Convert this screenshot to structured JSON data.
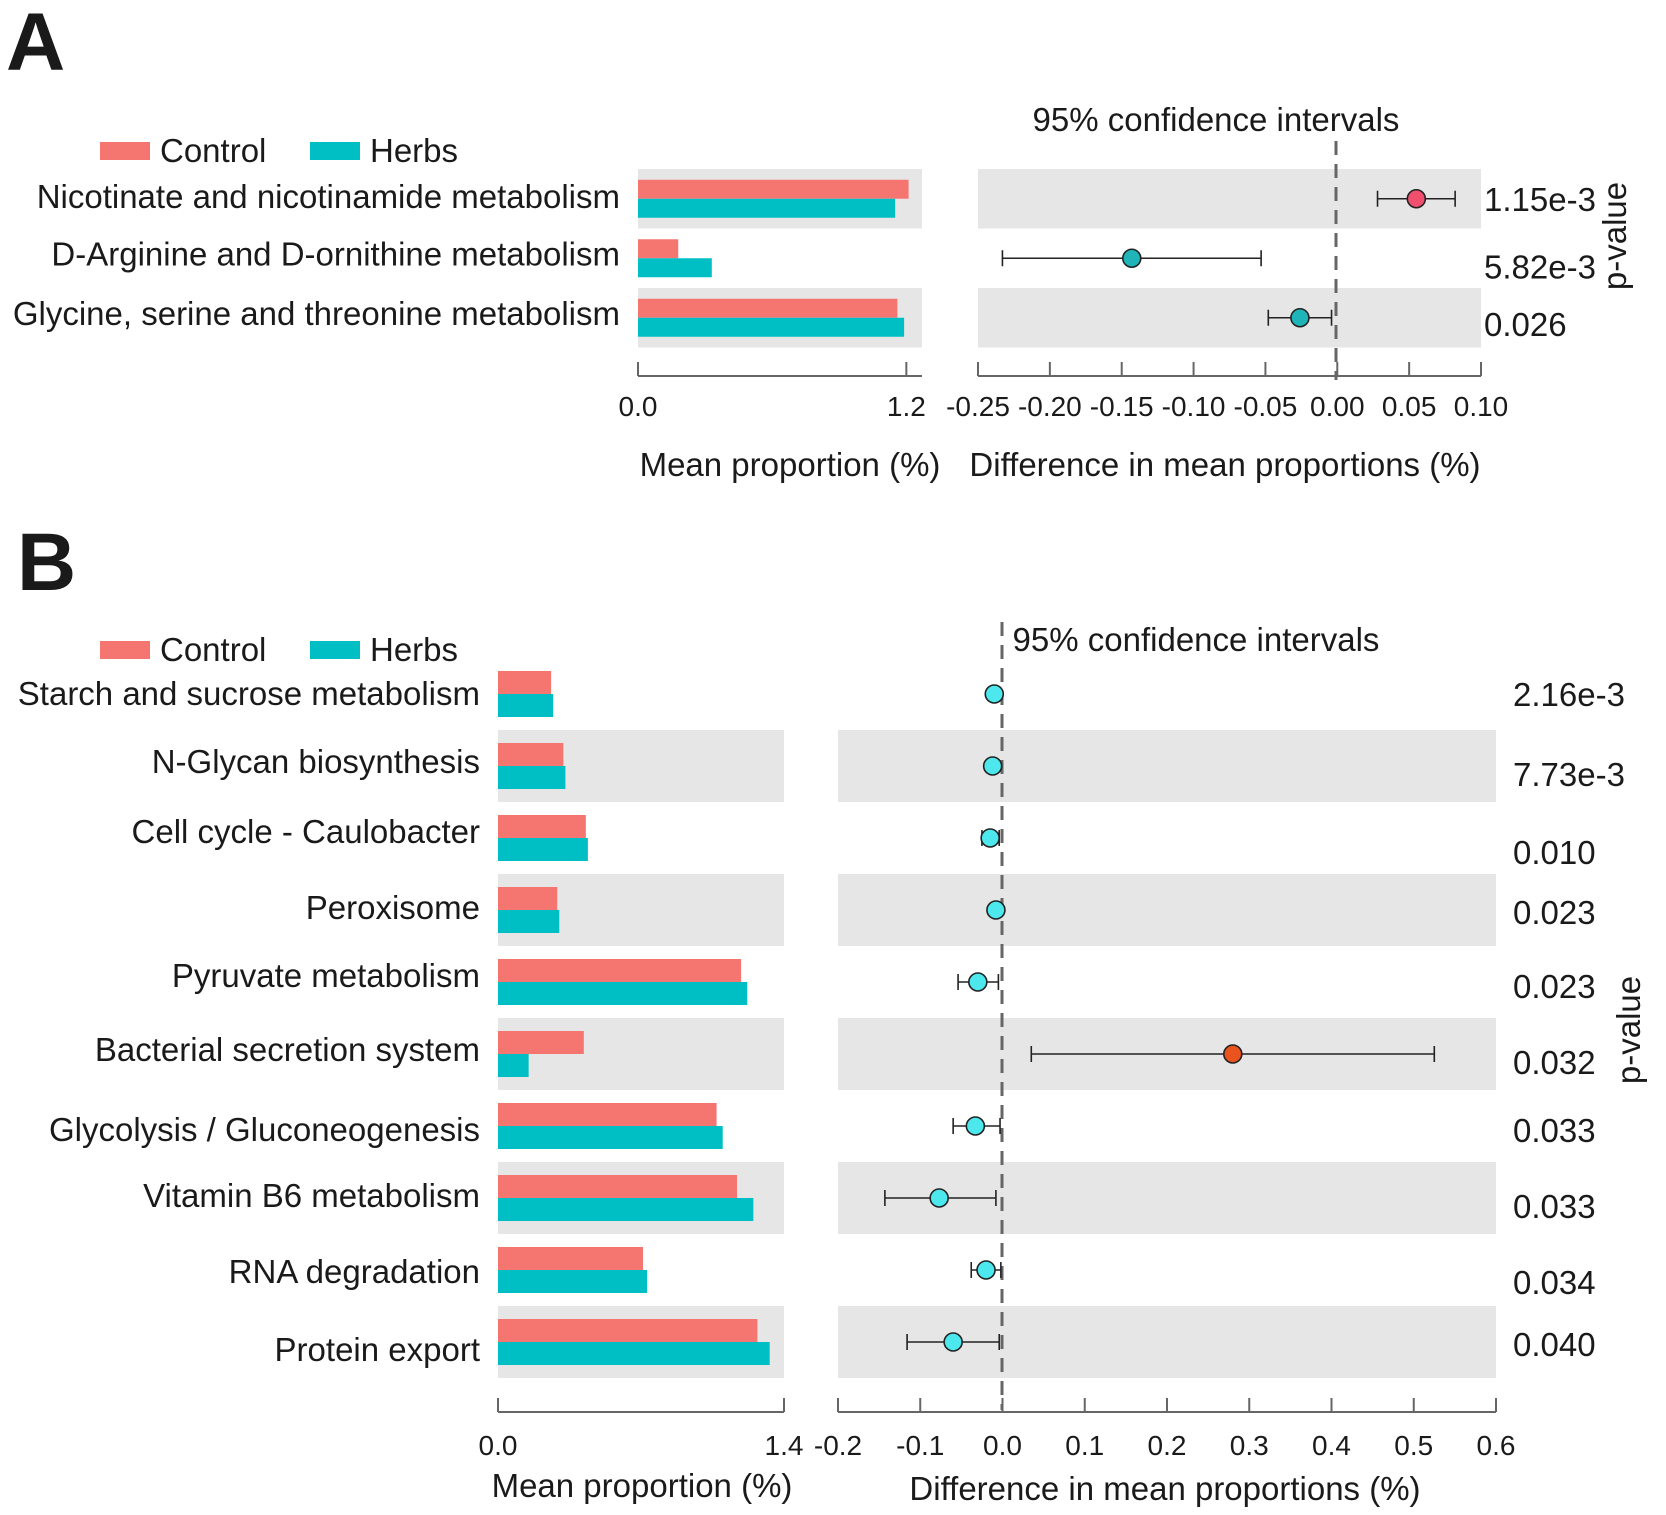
{
  "colors": {
    "control": "#F57570",
    "herbs": "#00BFC4",
    "band": "#E6E6E6"
  },
  "chart_data": [
    {
      "panel": "A",
      "type": "bar",
      "legend": [
        "Control",
        "Herbs"
      ],
      "categories": [
        "Nicotinate and nicotinamide metabolism",
        "D-Arginine and D-ornithine metabolism",
        "Glycine, serine and threonine metabolism"
      ],
      "series": [
        {
          "name": "Control",
          "values": [
            1.21,
            0.18,
            1.16
          ]
        },
        {
          "name": "Herbs",
          "values": [
            1.15,
            0.33,
            1.19
          ]
        }
      ],
      "xlabel": "Mean proportion (%)",
      "xlim": [
        0,
        1.27
      ],
      "xticks": [
        "0.0",
        "1.2"
      ],
      "xtick_values": [
        0,
        1.2
      ],
      "ci": {
        "title": "95% confidence intervals",
        "xlabel": "Difference in mean proportions (%)",
        "xlim": [
          -0.25,
          0.1
        ],
        "xticks": [
          "-0.25",
          "-0.20",
          "-0.15",
          "-0.10",
          "-0.05",
          "0.00",
          "0.05",
          "0.10"
        ],
        "xtick_values": [
          -0.25,
          -0.2,
          -0.15,
          -0.1,
          -0.05,
          0.0,
          0.05,
          0.1
        ],
        "points": [
          {
            "estimate": 0.055,
            "low": 0.028,
            "high": 0.082,
            "color": "#F0506E"
          },
          {
            "estimate": -0.143,
            "low": -0.233,
            "high": -0.053,
            "color": "#1FB5B8"
          },
          {
            "estimate": -0.026,
            "low": -0.048,
            "high": -0.004,
            "color": "#1FB5B8"
          }
        ]
      },
      "p_value_title": "p-value",
      "p_values": [
        "1.15e-3",
        "5.82e-3",
        "0.026"
      ]
    },
    {
      "panel": "B",
      "type": "bar",
      "legend": [
        "Control",
        "Herbs"
      ],
      "categories": [
        "Starch and sucrose metabolism",
        "N-Glycan biosynthesis",
        "Cell cycle - Caulobacter",
        "Peroxisome",
        "Pyruvate metabolism",
        "Bacterial secretion system",
        "Glycolysis / Gluconeogenesis",
        "Vitamin B6 metabolism",
        "RNA degradation",
        "Protein export"
      ],
      "series": [
        {
          "name": "Control",
          "values": [
            0.26,
            0.32,
            0.43,
            0.29,
            1.19,
            0.42,
            1.07,
            1.17,
            0.71,
            1.27
          ]
        },
        {
          "name": "Herbs",
          "values": [
            0.27,
            0.33,
            0.44,
            0.3,
            1.22,
            0.15,
            1.1,
            1.25,
            0.73,
            1.33
          ]
        }
      ],
      "xlabel": "Mean proportion (%)",
      "xlim": [
        0,
        1.4
      ],
      "xticks": [
        "0.0",
        "1.4"
      ],
      "xtick_values": [
        0,
        1.4
      ],
      "ci": {
        "title": "95% confidence intervals",
        "xlabel": "Difference in mean proportions (%)",
        "xlim": [
          -0.2,
          0.6
        ],
        "xticks": [
          "-0.2",
          "-0.1",
          "0.0",
          "0.1",
          "0.2",
          "0.3",
          "0.4",
          "0.5",
          "0.6"
        ],
        "xtick_values": [
          -0.2,
          -0.1,
          0.0,
          0.1,
          0.2,
          0.3,
          0.4,
          0.5,
          0.6
        ],
        "points": [
          {
            "estimate": -0.01,
            "low": -0.015,
            "high": -0.005,
            "color": "#4DE8EE"
          },
          {
            "estimate": -0.012,
            "low": -0.017,
            "high": -0.007,
            "color": "#4DE8EE"
          },
          {
            "estimate": -0.015,
            "low": -0.025,
            "high": -0.004,
            "color": "#4DE8EE"
          },
          {
            "estimate": -0.008,
            "low": -0.012,
            "high": -0.004,
            "color": "#4DE8EE"
          },
          {
            "estimate": -0.03,
            "low": -0.054,
            "high": -0.005,
            "color": "#4DE8EE"
          },
          {
            "estimate": 0.28,
            "low": 0.035,
            "high": 0.525,
            "color": "#E8531E"
          },
          {
            "estimate": -0.033,
            "low": -0.06,
            "high": -0.003,
            "color": "#4DE8EE"
          },
          {
            "estimate": -0.077,
            "low": -0.143,
            "high": -0.008,
            "color": "#4DE8EE"
          },
          {
            "estimate": -0.02,
            "low": -0.038,
            "high": -0.002,
            "color": "#4DE8EE"
          },
          {
            "estimate": -0.06,
            "low": -0.116,
            "high": -0.004,
            "color": "#4DE8EE"
          }
        ]
      },
      "p_value_title": "p-value",
      "p_values": [
        "2.16e-3",
        "7.73e-3",
        "0.010",
        "0.023",
        "0.023",
        "0.032",
        "0.033",
        "0.033",
        "0.034",
        "0.040"
      ]
    }
  ]
}
